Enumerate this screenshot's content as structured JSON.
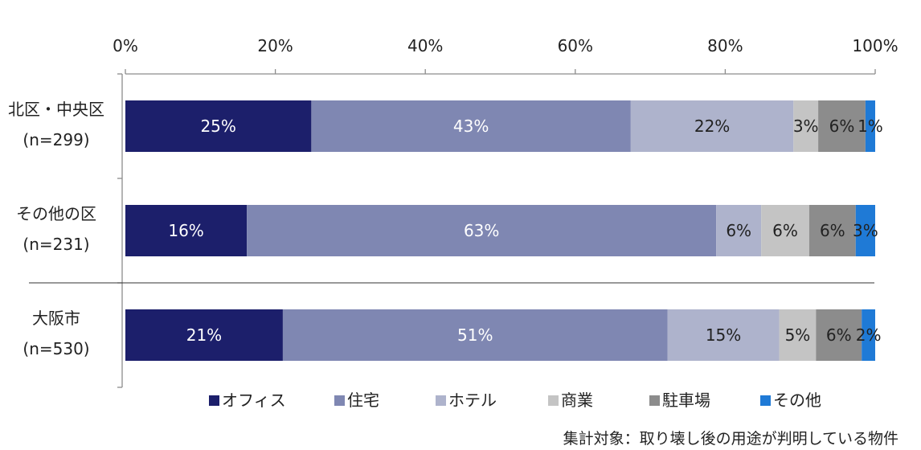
{
  "chart_data": {
    "type": "bar",
    "orientation": "horizontal",
    "stacked": true,
    "xlim": [
      0,
      100
    ],
    "ticks": [
      "0%",
      "20%",
      "40%",
      "60%",
      "80%",
      "100%"
    ],
    "tick_values": [
      0,
      20,
      40,
      60,
      80,
      100
    ],
    "categories": [
      {
        "name": "北区・中央区",
        "n": "(n=299)"
      },
      {
        "name": "その他の区",
        "n": "(n=231)"
      },
      {
        "name": "大阪市",
        "n": "(n=530)"
      }
    ],
    "series": [
      {
        "name": "オフィス",
        "color": "#1c1f6b",
        "label_color": "#ffffff",
        "values": [
          24.8,
          16.2,
          21.0
        ],
        "labels": [
          "25%",
          "16%",
          "21%"
        ]
      },
      {
        "name": "住宅",
        "color": "#7f87b2",
        "label_color": "#ffffff",
        "values": [
          42.6,
          62.6,
          51.3
        ],
        "labels": [
          "43%",
          "63%",
          "51%"
        ]
      },
      {
        "name": "ホテル",
        "color": "#aeb3cc",
        "label_color": "#222222",
        "values": [
          21.7,
          6.0,
          14.9
        ],
        "labels": [
          "22%",
          "6%",
          "15%"
        ]
      },
      {
        "name": "商業",
        "color": "#c4c4c4",
        "label_color": "#222222",
        "values": [
          3.3,
          6.4,
          4.9
        ],
        "labels": [
          "3%",
          "6%",
          "5%"
        ]
      },
      {
        "name": "駐車場",
        "color": "#8c8c8c",
        "label_color": "#222222",
        "values": [
          6.3,
          6.2,
          6.1
        ],
        "labels": [
          "6%",
          "6%",
          "6%"
        ]
      },
      {
        "name": "その他",
        "color": "#1f7ad6",
        "label_color": "#222222",
        "values": [
          1.3,
          2.6,
          1.8
        ],
        "labels": [
          "1%",
          "3%",
          "2%"
        ]
      }
    ],
    "legend_position": "bottom",
    "note": "集計対象：取り壊し後の用途が判明している物件"
  }
}
